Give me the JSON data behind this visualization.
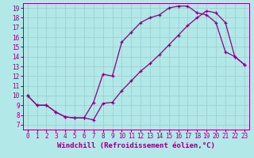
{
  "xlabel": "Windchill (Refroidissement éolien,°C)",
  "bg_color": "#b2e8e8",
  "line_color": "#880088",
  "xlim": [
    -0.5,
    23.5
  ],
  "ylim": [
    6.5,
    19.5
  ],
  "xticks": [
    0,
    1,
    2,
    3,
    4,
    5,
    6,
    7,
    8,
    9,
    10,
    11,
    12,
    13,
    14,
    15,
    16,
    17,
    18,
    19,
    20,
    21,
    22,
    23
  ],
  "yticks": [
    7,
    8,
    9,
    10,
    11,
    12,
    13,
    14,
    15,
    16,
    17,
    18,
    19
  ],
  "line1_x": [
    0,
    1,
    2,
    3,
    4,
    5,
    6,
    7,
    8,
    9,
    10,
    11,
    12,
    13,
    14,
    15,
    16,
    17,
    18,
    19,
    20,
    21,
    22,
    23
  ],
  "line1_y": [
    10,
    9,
    9,
    8.3,
    7.8,
    7.7,
    7.7,
    9.3,
    12.2,
    12.0,
    15.5,
    16.5,
    17.5,
    18.0,
    18.3,
    19.0,
    19.2,
    19.2,
    18.5,
    18.3,
    17.5,
    14.5,
    14.0,
    13.2
  ],
  "line2_x": [
    0,
    1,
    2,
    3,
    4,
    5,
    6,
    7,
    8,
    9,
    10,
    11,
    12,
    13,
    14,
    15,
    16,
    17,
    18,
    19,
    20,
    21,
    22,
    23
  ],
  "line2_y": [
    10,
    9,
    9,
    8.3,
    7.8,
    7.7,
    7.7,
    7.5,
    9.2,
    9.3,
    10.5,
    11.5,
    12.5,
    13.3,
    14.2,
    15.2,
    16.2,
    17.2,
    18.0,
    18.7,
    18.5,
    17.5,
    14.0,
    13.2
  ],
  "grid_color": "#99cccc",
  "tick_fontsize": 5.5,
  "xlabel_fontsize": 6.5
}
